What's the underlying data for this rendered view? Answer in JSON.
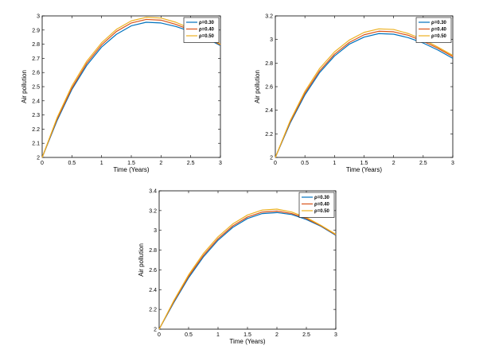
{
  "chart_data": [
    {
      "type": "line",
      "xlabel": "Time (Years)",
      "ylabel": "Air pollution",
      "xlim": [
        0,
        3
      ],
      "ylim": [
        2,
        3
      ],
      "xticks": [
        "0",
        "0.5",
        "1",
        "1.5",
        "2",
        "2.5",
        "3"
      ],
      "yticks": [
        "2",
        "2.1",
        "2.2",
        "2.3",
        "2.4",
        "2.5",
        "2.6",
        "2.7",
        "2.8",
        "2.9",
        "3"
      ],
      "legend_position": "top-right",
      "grid": false,
      "series": [
        {
          "name": "ρ=0.30",
          "color": "#0072BD",
          "x": [
            0,
            0.25,
            0.5,
            0.75,
            1,
            1.25,
            1.5,
            1.75,
            2,
            2.25,
            2.5,
            2.75,
            3
          ],
          "values": [
            2.0,
            2.26,
            2.48,
            2.65,
            2.78,
            2.87,
            2.93,
            2.955,
            2.95,
            2.925,
            2.89,
            2.845,
            2.79
          ]
        },
        {
          "name": "ρ=0.40",
          "color": "#D95319",
          "x": [
            0,
            0.25,
            0.5,
            0.75,
            1,
            1.25,
            1.5,
            1.75,
            2,
            2.25,
            2.5,
            2.75,
            3
          ],
          "values": [
            2.0,
            2.27,
            2.49,
            2.665,
            2.795,
            2.89,
            2.95,
            2.975,
            2.97,
            2.94,
            2.9,
            2.855,
            2.795
          ]
        },
        {
          "name": "ρ=0.50",
          "color": "#EDB120",
          "x": [
            0,
            0.25,
            0.5,
            0.75,
            1,
            1.25,
            1.5,
            1.75,
            2,
            2.25,
            2.5,
            2.75,
            3
          ],
          "values": [
            2.0,
            2.28,
            2.505,
            2.68,
            2.81,
            2.905,
            2.965,
            2.99,
            2.985,
            2.955,
            2.91,
            2.86,
            2.8
          ]
        }
      ]
    },
    {
      "type": "line",
      "xlabel": "Time (Years)",
      "ylabel": "Air pollution",
      "xlim": [
        0,
        3
      ],
      "ylim": [
        2,
        3.2
      ],
      "xticks": [
        "0",
        "0.5",
        "1",
        "1.5",
        "2",
        "2.5",
        "3"
      ],
      "yticks": [
        "2",
        "2.2",
        "2.4",
        "2.6",
        "2.8",
        "3",
        "3.2"
      ],
      "legend_position": "top-right",
      "grid": false,
      "series": [
        {
          "name": "ρ=0.30",
          "color": "#0072BD",
          "x": [
            0,
            0.25,
            0.5,
            0.75,
            1,
            1.25,
            1.5,
            1.75,
            2,
            2.25,
            2.5,
            2.75,
            3
          ],
          "values": [
            2.0,
            2.29,
            2.53,
            2.72,
            2.86,
            2.96,
            3.02,
            3.05,
            3.045,
            3.015,
            2.97,
            2.91,
            2.84
          ]
        },
        {
          "name": "ρ=0.40",
          "color": "#D95319",
          "x": [
            0,
            0.25,
            0.5,
            0.75,
            1,
            1.25,
            1.5,
            1.75,
            2,
            2.25,
            2.5,
            2.75,
            3
          ],
          "values": [
            2.0,
            2.3,
            2.545,
            2.735,
            2.875,
            2.975,
            3.04,
            3.07,
            3.065,
            3.035,
            2.985,
            2.925,
            2.855
          ]
        },
        {
          "name": "ρ=0.50",
          "color": "#EDB120",
          "x": [
            0,
            0.25,
            0.5,
            0.75,
            1,
            1.25,
            1.5,
            1.75,
            2,
            2.25,
            2.5,
            2.75,
            3
          ],
          "values": [
            2.0,
            2.31,
            2.56,
            2.755,
            2.895,
            2.995,
            3.06,
            3.09,
            3.085,
            3.05,
            3.0,
            2.935,
            2.865
          ]
        }
      ]
    },
    {
      "type": "line",
      "xlabel": "Time (Years)",
      "ylabel": "Air pollution",
      "xlim": [
        0,
        3
      ],
      "ylim": [
        2,
        3.4
      ],
      "xticks": [
        "0",
        "0.5",
        "1",
        "1.5",
        "2",
        "2.5",
        "3"
      ],
      "yticks": [
        "2",
        "2.2",
        "2.4",
        "2.6",
        "2.8",
        "3",
        "3.2",
        "3.4"
      ],
      "legend_position": "top-right",
      "grid": false,
      "series": [
        {
          "name": "ρ=0.30",
          "color": "#0072BD",
          "x": [
            0,
            0.25,
            0.5,
            0.75,
            1,
            1.25,
            1.5,
            1.75,
            2,
            2.25,
            2.5,
            2.75,
            3
          ],
          "values": [
            2.0,
            2.27,
            2.52,
            2.73,
            2.9,
            3.03,
            3.12,
            3.17,
            3.18,
            3.16,
            3.11,
            3.04,
            2.95
          ]
        },
        {
          "name": "ρ=0.40",
          "color": "#D95319",
          "x": [
            0,
            0.25,
            0.5,
            0.75,
            1,
            1.25,
            1.5,
            1.75,
            2,
            2.25,
            2.5,
            2.75,
            3
          ],
          "values": [
            2.0,
            2.28,
            2.535,
            2.745,
            2.915,
            3.045,
            3.135,
            3.185,
            3.195,
            3.17,
            3.12,
            3.045,
            2.955
          ]
        },
        {
          "name": "ρ=0.50",
          "color": "#EDB120",
          "x": [
            0,
            0.25,
            0.5,
            0.75,
            1,
            1.25,
            1.5,
            1.75,
            2,
            2.25,
            2.5,
            2.75,
            3
          ],
          "values": [
            2.0,
            2.29,
            2.55,
            2.765,
            2.935,
            3.065,
            3.155,
            3.205,
            3.215,
            3.185,
            3.13,
            3.05,
            2.96
          ]
        }
      ]
    }
  ]
}
